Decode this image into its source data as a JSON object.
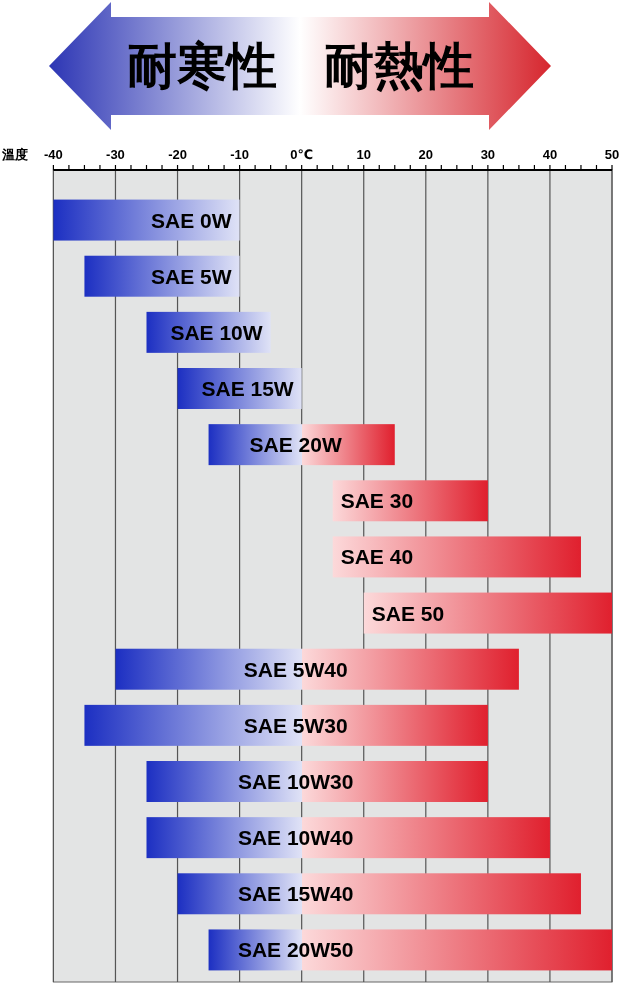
{
  "chart_data": {
    "type": "bar",
    "orientation": "horizontal",
    "categories": [
      "SAE 0W",
      "SAE 5W",
      "SAE 10W",
      "SAE 15W",
      "SAE 20W",
      "SAE 30",
      "SAE 40",
      "SAE 50",
      "SAE 5W40",
      "SAE 5W30",
      "SAE 10W30",
      "SAE 10W40",
      "SAE 15W40",
      "SAE 20W50"
    ],
    "base": [
      -40,
      -35,
      -25,
      -20,
      -15,
      5,
      5,
      10,
      -30,
      -35,
      -25,
      -25,
      -20,
      -15
    ],
    "values": [
      30,
      25,
      20,
      20,
      30,
      25,
      40,
      40,
      65,
      65,
      55,
      65,
      65,
      65
    ],
    "annotations": [
      "耐寒性",
      "耐熱性"
    ],
    "xlabel": "溫度",
    "xlim": [
      -40,
      50
    ],
    "xticks": [
      -40,
      {
        "value": -37.5,
        "label": null
      },
      {
        "value": -35,
        "label": null
      },
      {
        "value": -32.5,
        "label": null
      },
      -30,
      {
        "value": -27.5,
        "label": null
      },
      {
        "value": -25,
        "label": null
      },
      {
        "value": -22.5,
        "label": null
      },
      -20,
      {
        "value": -17.5,
        "label": null
      },
      {
        "value": -15,
        "label": null
      },
      {
        "value": -12.5,
        "label": null
      },
      -10,
      {
        "value": -7.5,
        "label": null
      },
      {
        "value": -5,
        "label": null
      },
      {
        "value": -2.5,
        "label": null
      },
      {
        "value": 0,
        "label": "0℃"
      },
      {
        "value": 2.5,
        "label": null
      },
      {
        "value": 5,
        "label": null
      },
      {
        "value": 7.5,
        "label": null
      },
      10,
      {
        "value": 12.5,
        "label": null
      },
      {
        "value": 15,
        "label": null
      },
      {
        "value": 17.5,
        "label": null
      },
      20,
      {
        "value": 22.5,
        "label": null
      },
      {
        "value": 25,
        "label": null
      },
      {
        "value": 27.5,
        "label": null
      },
      30,
      {
        "value": 32.5,
        "label": null
      },
      {
        "value": 35,
        "label": null
      },
      {
        "value": 37.5,
        "label": null
      },
      40,
      {
        "value": 42.5,
        "label": null
      },
      {
        "value": 45,
        "label": null
      },
      {
        "value": 47.5,
        "label": null
      },
      50
    ],
    "grid": "x"
  }
}
